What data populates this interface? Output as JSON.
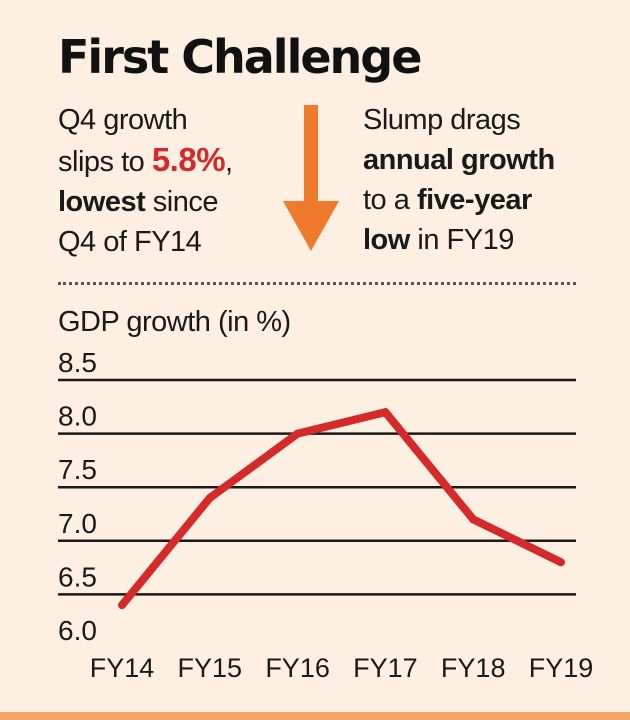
{
  "headline": "First Challenge",
  "left_blurb": {
    "line1": "Q4 growth",
    "line2_pre": "slips to ",
    "line2_value": "5.8%",
    "line2_post": ",",
    "line3_bold": "lowest",
    "line3_rest": " since",
    "line4": "Q4 of FY14"
  },
  "right_blurb": {
    "line1": "Slump drags",
    "line2_bold": "annual growth",
    "line3_pre": "to a ",
    "line3_bold": "five-year",
    "line4_bold": "low",
    "line4_rest": " in FY19"
  },
  "colors": {
    "accent": "#d42a2a",
    "arrow": "#f07a2c",
    "line": "#d42a2a",
    "background": "#fdf0e3"
  },
  "chart_data": {
    "type": "line",
    "title": "GDP growth (in %)",
    "categories": [
      "FY14",
      "FY15",
      "FY16",
      "FY17",
      "FY18",
      "FY19"
    ],
    "values": [
      6.4,
      7.4,
      8.0,
      8.2,
      7.2,
      6.8
    ],
    "ylim": [
      6.0,
      8.5
    ],
    "yticks": [
      "6.0",
      "6.5",
      "7.0",
      "7.5",
      "8.0",
      "8.5"
    ],
    "ytick_values": [
      6.0,
      6.5,
      7.0,
      7.5,
      8.0,
      8.5
    ],
    "xlabel": "",
    "ylabel": "GDP growth (in %)",
    "grid": true
  }
}
